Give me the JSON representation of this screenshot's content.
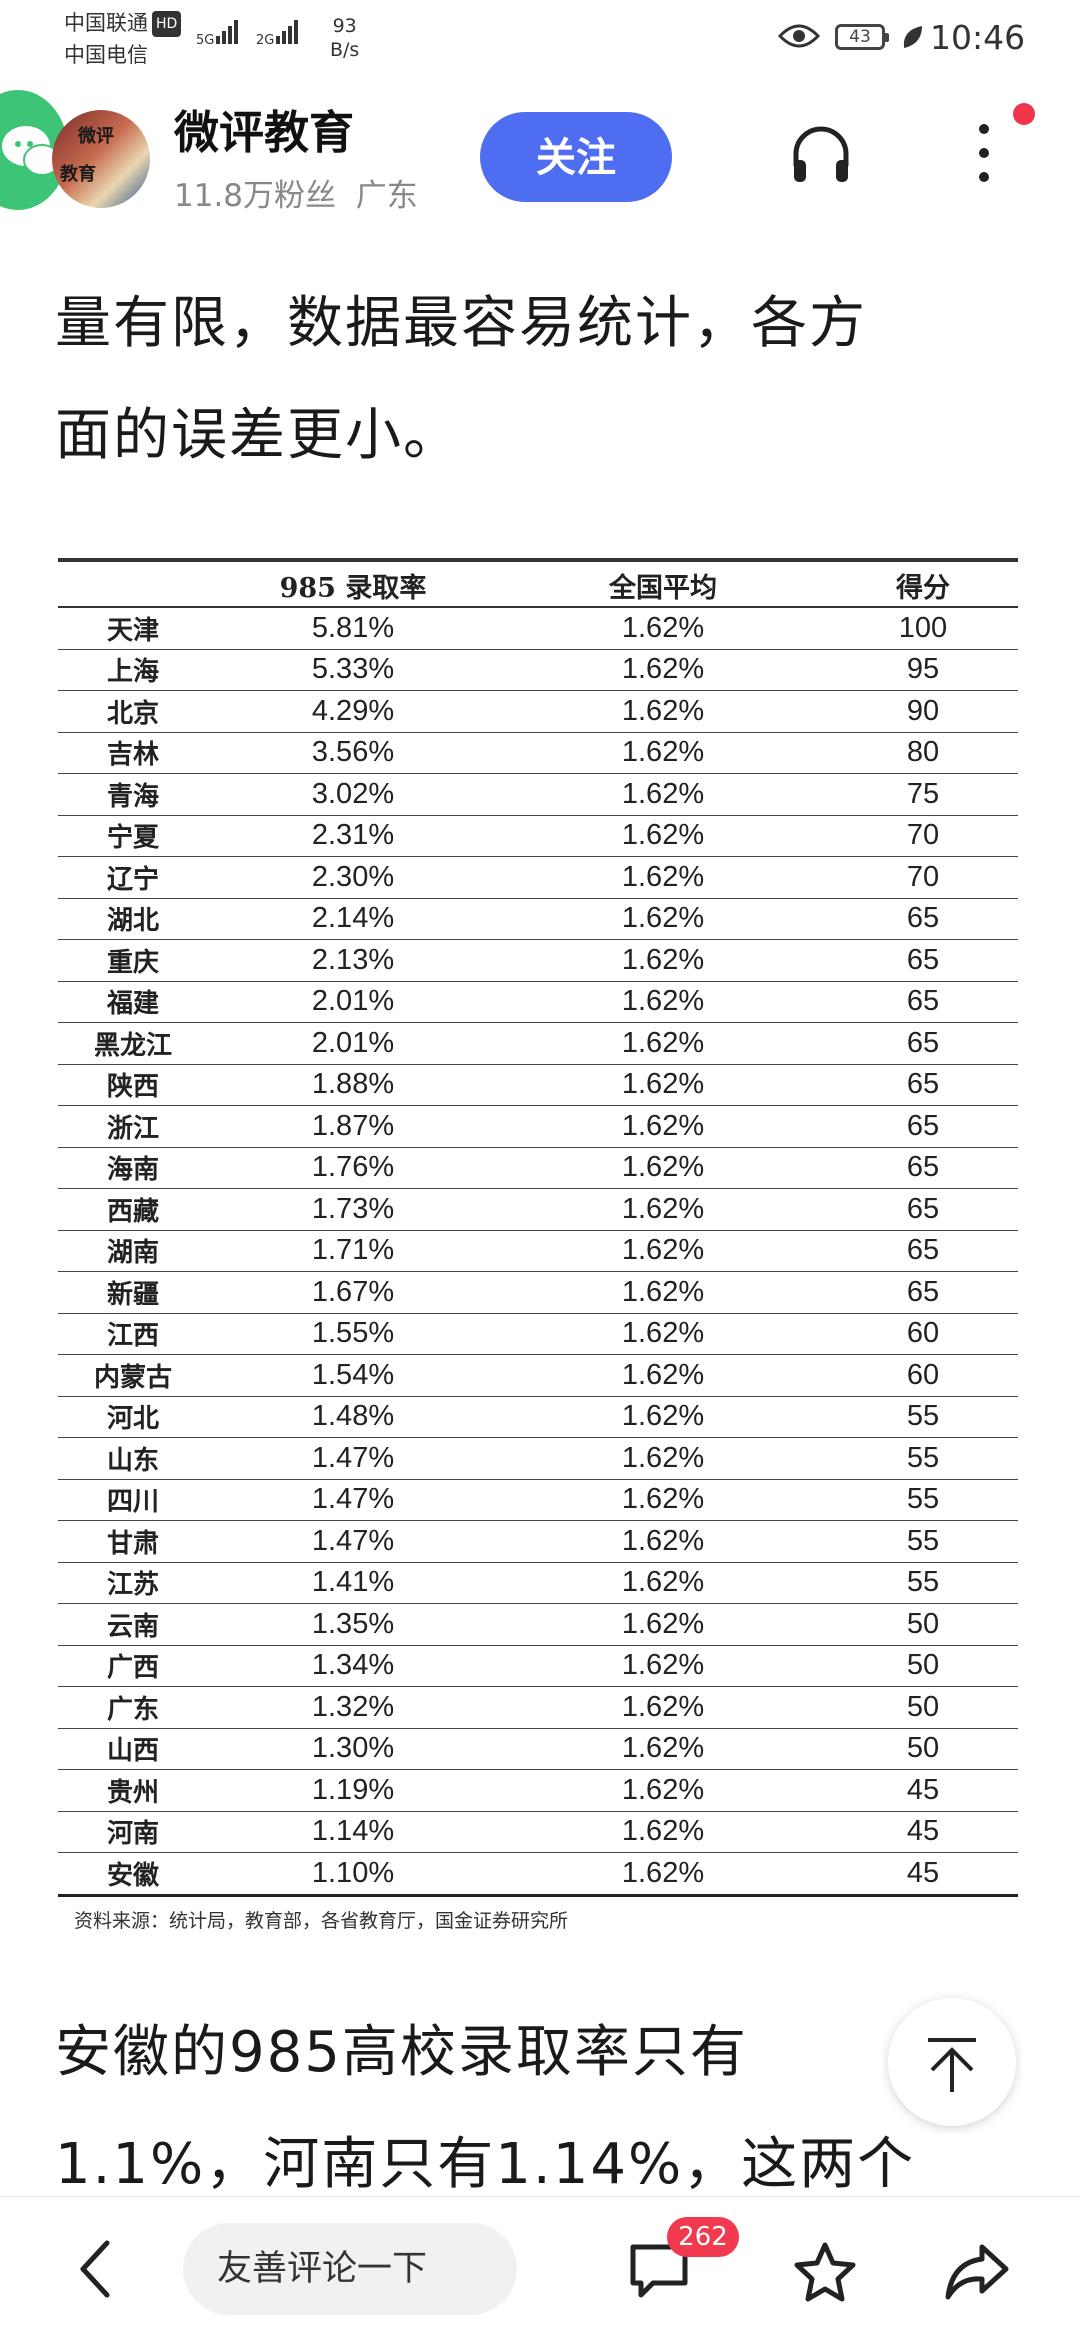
{
  "status_bar": {
    "carrier1": "中国联通",
    "hd": "HD",
    "carrier2": "中国电信",
    "sig1": "5G",
    "sig2": "2G",
    "speed_value": "93",
    "speed_unit": "B/s",
    "battery": "43",
    "time": "10:46"
  },
  "header": {
    "account_name": "微评教育",
    "avatar_text_1": "微评",
    "avatar_text_2": "教育",
    "followers": "11.8万粉丝",
    "region": "广东",
    "follow_label": "关注"
  },
  "article": {
    "para_top_line1": "量有限，数据最容易统计，各方",
    "para_top_line2": "面的误差更小。",
    "para_bottom_line1": "安徽的985高校录取率只有",
    "para_bottom_line2": "1.1%，河南只有1.14%，这两个"
  },
  "table": {
    "headers": [
      "",
      "985 录取率",
      "全国平均",
      "得分"
    ],
    "rows": [
      [
        "天津",
        "5.81%",
        "1.62%",
        "100"
      ],
      [
        "上海",
        "5.33%",
        "1.62%",
        "95"
      ],
      [
        "北京",
        "4.29%",
        "1.62%",
        "90"
      ],
      [
        "吉林",
        "3.56%",
        "1.62%",
        "80"
      ],
      [
        "青海",
        "3.02%",
        "1.62%",
        "75"
      ],
      [
        "宁夏",
        "2.31%",
        "1.62%",
        "70"
      ],
      [
        "辽宁",
        "2.30%",
        "1.62%",
        "70"
      ],
      [
        "湖北",
        "2.14%",
        "1.62%",
        "65"
      ],
      [
        "重庆",
        "2.13%",
        "1.62%",
        "65"
      ],
      [
        "福建",
        "2.01%",
        "1.62%",
        "65"
      ],
      [
        "黑龙江",
        "2.01%",
        "1.62%",
        "65"
      ],
      [
        "陕西",
        "1.88%",
        "1.62%",
        "65"
      ],
      [
        "浙江",
        "1.87%",
        "1.62%",
        "65"
      ],
      [
        "海南",
        "1.76%",
        "1.62%",
        "65"
      ],
      [
        "西藏",
        "1.73%",
        "1.62%",
        "65"
      ],
      [
        "湖南",
        "1.71%",
        "1.62%",
        "65"
      ],
      [
        "新疆",
        "1.67%",
        "1.62%",
        "65"
      ],
      [
        "江西",
        "1.55%",
        "1.62%",
        "60"
      ],
      [
        "内蒙古",
        "1.54%",
        "1.62%",
        "60"
      ],
      [
        "河北",
        "1.48%",
        "1.62%",
        "55"
      ],
      [
        "山东",
        "1.47%",
        "1.62%",
        "55"
      ],
      [
        "四川",
        "1.47%",
        "1.62%",
        "55"
      ],
      [
        "甘肃",
        "1.47%",
        "1.62%",
        "55"
      ],
      [
        "江苏",
        "1.41%",
        "1.62%",
        "55"
      ],
      [
        "云南",
        "1.35%",
        "1.62%",
        "50"
      ],
      [
        "广西",
        "1.34%",
        "1.62%",
        "50"
      ],
      [
        "广东",
        "1.32%",
        "1.62%",
        "50"
      ],
      [
        "山西",
        "1.30%",
        "1.62%",
        "50"
      ],
      [
        "贵州",
        "1.19%",
        "1.62%",
        "45"
      ],
      [
        "河南",
        "1.14%",
        "1.62%",
        "45"
      ],
      [
        "安徽",
        "1.10%",
        "1.62%",
        "45"
      ]
    ],
    "source": "资料来源：统计局，教育部，各省教育厅，国金证券研究所"
  },
  "bottom_bar": {
    "comment_placeholder": "友善评论一下",
    "comment_count": "262"
  },
  "colors": {
    "follow_button": "#4f6df0",
    "badge": "#f23a4f",
    "wechat": "#3dc476"
  }
}
